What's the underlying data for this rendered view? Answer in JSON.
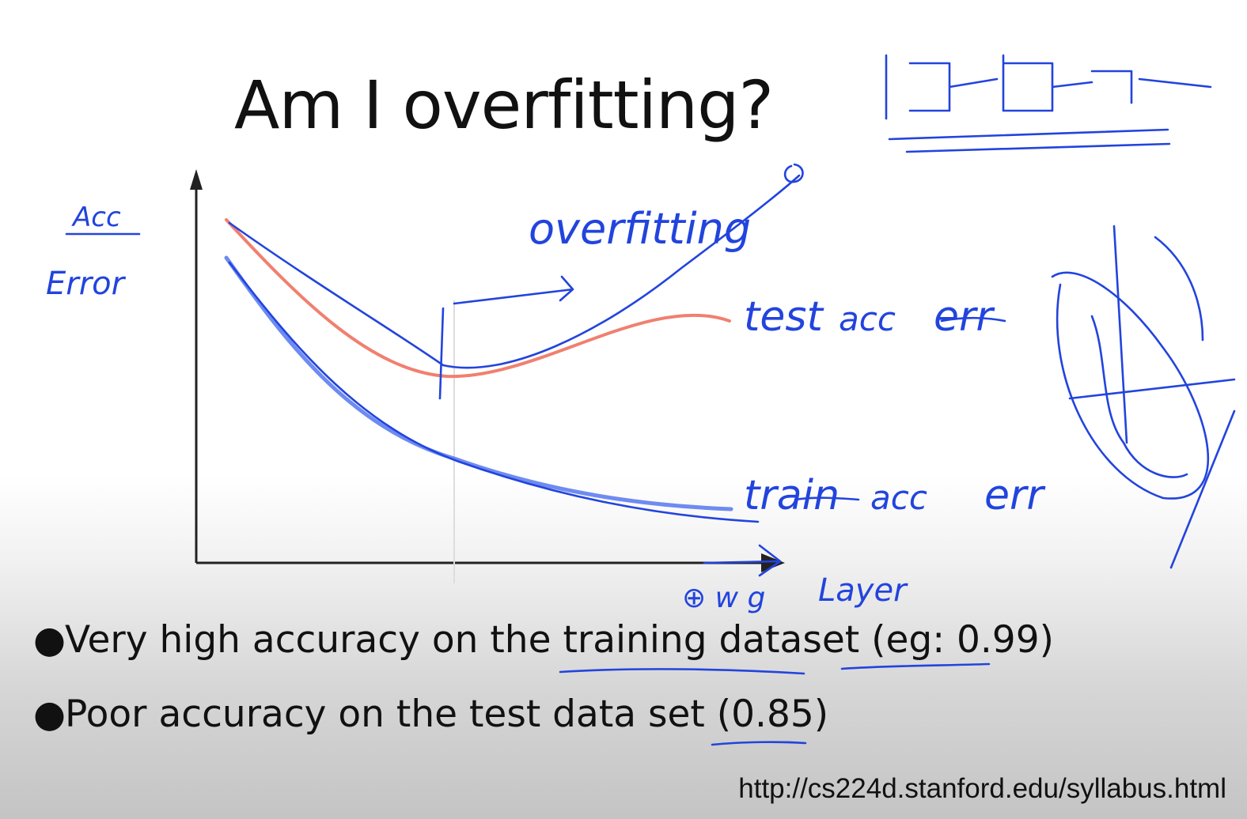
{
  "slide": {
    "title": "Am I overfitting?",
    "bullets": [
      "Very high accuracy on the training dataset (eg: 0.99)",
      "Poor accuracy on the test data set (0.85)"
    ],
    "source_url": "http://cs224d.stanford.edu/syllabus.html"
  },
  "annotations": {
    "y_axis_label_struck": "Acc",
    "y_axis_label": "Error",
    "region_label": "overfitting",
    "test_curve_label": "test",
    "test_curve_label_struck": "acc",
    "test_curve_label_suffix": "err",
    "train_curve_label": "train",
    "train_curve_label_struck": "acc",
    "train_curve_label_suffix": "err",
    "x_axis_label": "Layer",
    "x_axis_label_symbols": "⊕ w g"
  },
  "colors": {
    "ink": "#2244dd",
    "test_curve": "#f08070",
    "axis": "#222222",
    "text": "#111111"
  }
}
